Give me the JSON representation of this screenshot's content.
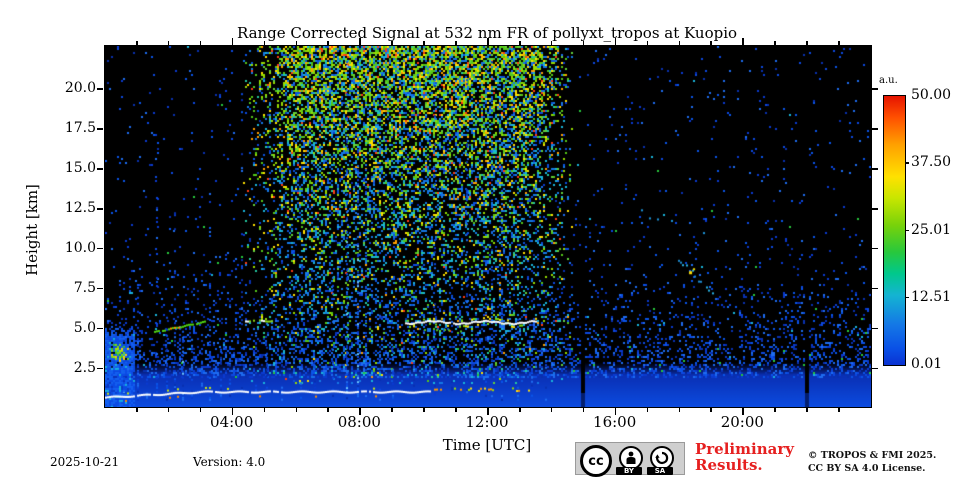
{
  "title": "Range Corrected Signal at 532 nm FR of pollyxt_tropos at Kuopio",
  "axes": {
    "ylabel": "Height [km]",
    "xlabel": "Time [UTC]"
  },
  "colorbar": {
    "unit": "a.u.",
    "tick_labels": [
      "50.00",
      "37.50",
      "25.01",
      "12.51",
      "0.01"
    ]
  },
  "footer": {
    "date": "2025-10-21",
    "version": "Version: 4.0",
    "preliminary_line1": "Preliminary",
    "preliminary_line2": "Results.",
    "copyright_line1": "© TROPOS & FMI 2025.",
    "copyright_line2": "CC BY SA 4.0 License.",
    "cc_logo_text": "cc",
    "cc_by_label": "BY",
    "cc_sa_label": "SA"
  },
  "chart_data": {
    "type": "heatmap",
    "title": "Range Corrected Signal at 532 nm FR of pollyxt_tropos at Kuopio",
    "xlabel": "Time [UTC]",
    "ylabel": "Height [km]",
    "xlim_hours": [
      0,
      24
    ],
    "ylim_km": [
      0.1,
      22.7
    ],
    "xticks_hours": [
      4,
      8,
      12,
      16,
      20
    ],
    "xtick_labels": [
      "04:00",
      "08:00",
      "12:00",
      "16:00",
      "20:00"
    ],
    "minor_xticks_every_hours": 1,
    "yticks_km": [
      20.0,
      17.5,
      15.0,
      12.5,
      10.0,
      7.5,
      5.0,
      2.5
    ],
    "ytick_labels": [
      "20.0",
      "17.5",
      "15.0",
      "12.5",
      "10.0",
      "7.5",
      "5.0",
      "2.5"
    ],
    "value_unit": "a.u.",
    "value_range": [
      0.01,
      50.0
    ],
    "colorbar_tick_values": [
      50.0,
      37.5,
      25.01,
      12.51,
      0.01
    ],
    "colormap": "rainbow blue-to-red (jet-like)",
    "background_color": "#000000",
    "features": {
      "surface_signal": {
        "km_solid_top": 2.1,
        "km_fade_top": 2.9,
        "color_bottom": "#0c4ce0",
        "color_mid": "#0a2fb4"
      },
      "night_noise": {
        "base_density": 0.02,
        "dense_km": 2.0,
        "scale_km": 2.8,
        "palette": [
          "#0a3ad0",
          "#0c48e0",
          "#0a55e8",
          "#1e6cf0",
          "#0830b0"
        ],
        "cyan_color": "#19b4dc",
        "green_color": "#28c83c"
      },
      "day_noise": {
        "t0": 4.2,
        "t1": 14.7,
        "core_t0": 5.8,
        "core_t1": 13.2,
        "warm_palette": [
          "#55c819",
          "#96dc00",
          "#ffe100",
          "#64d23c",
          "#ffa000",
          "#ff3c14"
        ],
        "cool_palette": [
          "#1478e6",
          "#19b4dc",
          "#0a50dc",
          "#23c8a0"
        ]
      },
      "boundary_layer_line": {
        "t0": 0,
        "t1": 10.2,
        "km_start": 0.75,
        "km_end": 1.1,
        "color": "#ffffff",
        "spark_below_color": "#ff8c00",
        "spark_above_color": "#c8e614"
      },
      "boundary_layer_dots": {
        "t0": 10.3,
        "t1": 13.4,
        "km": 1.25,
        "colors": [
          "#ffe10a",
          "#a0dc00",
          "#ff9600"
        ]
      },
      "elevated_layer": {
        "t0": 9.4,
        "t1": 13.5,
        "km": 5.45,
        "color_core": "#ffffff",
        "fringe_colors": [
          "#ffe60a",
          "#78dc0a"
        ]
      },
      "elevated_layer_secondary": {
        "t0": 9.5,
        "t1": 11.6,
        "km": 4.95,
        "color": "#50c828"
      },
      "slanted_layer": {
        "t0": 1.55,
        "t1": 3.15,
        "km0": 4.85,
        "km1": 5.5,
        "color": "#50d214",
        "hot_color": "#ff9600",
        "hot_t0": 1.9,
        "hot_t1": 2.4
      },
      "slanted_layer_ext": {
        "t0": 4.15,
        "t1": 5.25,
        "km": 5.55,
        "color": "#8adc14"
      },
      "start_column": {
        "t0": 0,
        "t1": 0.9,
        "km_top": 5.3,
        "palette": [
          "#1460f0",
          "#0c4ce6",
          "#19b4dc"
        ]
      },
      "start_blob": {
        "t0": 0.05,
        "t1": 0.8,
        "km0": 2.9,
        "km1": 4.3,
        "colors": [
          "#7adc14",
          "#b4e600",
          "#ffd500",
          "#3cc828"
        ]
      },
      "streaks": [
        [
          0.55,
          3.5,
          0.9
        ],
        [
          0.8,
          4.5,
          0.8
        ],
        [
          1.0,
          8,
          0.7
        ],
        [
          1.3,
          3,
          0.8
        ],
        [
          1.6,
          14.5,
          0.45
        ],
        [
          1.9,
          6,
          0.7
        ],
        [
          2.15,
          14.8,
          0.5
        ],
        [
          2.4,
          5,
          0.8
        ],
        [
          2.7,
          8,
          0.6
        ],
        [
          3.0,
          3.5,
          0.7
        ],
        [
          3.25,
          14.5,
          0.5
        ],
        [
          3.6,
          6,
          0.6
        ],
        [
          3.9,
          3,
          0.6
        ],
        [
          4.25,
          21,
          0.35
        ],
        [
          4.7,
          5,
          0.55
        ],
        [
          5.05,
          6,
          0.5
        ],
        [
          5.5,
          4,
          0.5
        ],
        [
          6.1,
          5,
          0.5
        ],
        [
          6.55,
          4,
          0.5
        ],
        [
          7.1,
          9,
          0.5
        ],
        [
          7.55,
          22,
          0.75
        ],
        [
          7.9,
          22,
          0.8
        ],
        [
          8.15,
          16,
          0.5
        ],
        [
          8.6,
          6,
          0.5
        ],
        [
          9.0,
          6,
          0.55
        ],
        [
          9.65,
          5,
          0.5
        ],
        [
          10.3,
          22,
          0.4
        ],
        [
          10.85,
          10,
          0.45
        ],
        [
          11.3,
          22,
          0.4
        ],
        [
          11.9,
          8,
          0.45
        ],
        [
          12.1,
          22,
          0.45
        ],
        [
          12.4,
          14,
          0.4
        ],
        [
          12.9,
          7,
          0.45
        ],
        [
          13.35,
          5,
          0.5
        ],
        [
          13.8,
          4,
          0.5
        ]
      ],
      "cloud_streak": {
        "t0": 17.9,
        "t1": 19.05,
        "km_top": 9.6,
        "km_bottom": 7.2,
        "colors": [
          "#28b4e6",
          "#1e8cd2"
        ],
        "hot_t": 18.3,
        "hot_km": 8.6,
        "hot_color": "#ffe100"
      },
      "cirrus_wisps": {
        "t0": 15.6,
        "t1": 18.8,
        "km0": 10.2,
        "km1": 13.2,
        "color": "#1e96dc",
        "density": 0.06
      },
      "data_gaps_hours": [
        14.95,
        21.95
      ]
    }
  }
}
